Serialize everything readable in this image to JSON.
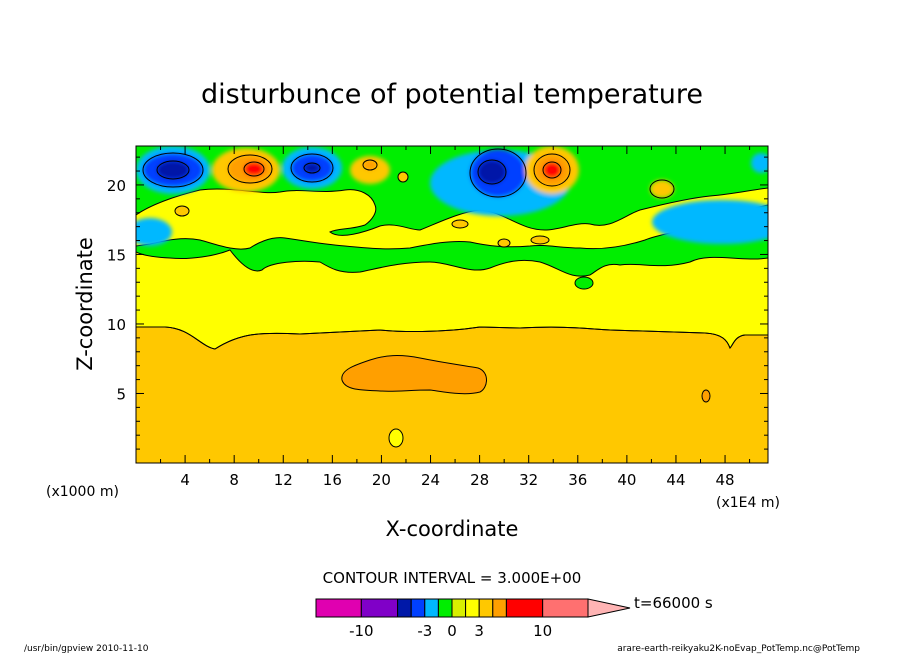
{
  "chart_data": {
    "type": "heatmap",
    "title": "disturbunce of potential temperature",
    "xlabel": "X-coordinate",
    "ylabel": "Z-coordinate",
    "x_scale_label": "(x1E4 m)",
    "y_scale_label": "(x1000 m)",
    "xlim": [
      0,
      51.5
    ],
    "ylim": [
      0,
      22.8
    ],
    "xticks": [
      "4",
      "8",
      "12",
      "16",
      "20",
      "24",
      "28",
      "32",
      "36",
      "40",
      "44",
      "48"
    ],
    "yticks": [
      "5",
      "10",
      "15",
      "20"
    ],
    "contour_interval_label": "CONTOUR INTERVAL = 3.000E+00",
    "time_label": "t=66000 s",
    "colorbar": {
      "tick_labels": [
        "-10",
        "-3",
        "0",
        "3",
        "10"
      ],
      "bins": [
        {
          "lo": -15,
          "hi": -10,
          "color": "#e000b0"
        },
        {
          "lo": -10,
          "hi": -6,
          "color": "#8000c8"
        },
        {
          "lo": -6,
          "hi": -4.5,
          "color": "#0018a8"
        },
        {
          "lo": -4.5,
          "hi": -3,
          "color": "#0040ff"
        },
        {
          "lo": -3,
          "hi": -1.5,
          "color": "#00b8ff"
        },
        {
          "lo": -1.5,
          "hi": 0,
          "color": "#00ee00"
        },
        {
          "lo": 0,
          "hi": 1.5,
          "color": "#d8f000"
        },
        {
          "lo": 1.5,
          "hi": 3,
          "color": "#ffff00"
        },
        {
          "lo": 3,
          "hi": 4.5,
          "color": "#ffc800"
        },
        {
          "lo": 4.5,
          "hi": 6,
          "color": "#ff9f00"
        },
        {
          "lo": 6,
          "hi": 10,
          "color": "#ff0000"
        },
        {
          "lo": 10,
          "hi": 15,
          "color": "#ff7070"
        },
        {
          "lo": 15,
          "hi": 20,
          "color": "#ffb4b4"
        }
      ]
    },
    "field_regions": [
      {
        "region": "lower layer, z 0-9.5",
        "approx_value": 3.5
      },
      {
        "region": "middle layer, z 9.5-15",
        "approx_value": 2
      },
      {
        "region": "warm blob centred x 24, z 6",
        "approx_value": 5
      },
      {
        "region": "cold cell centred x 3, z 21",
        "approx_value": -5.5
      },
      {
        "region": "warm cell centred x 10, z 21",
        "approx_value": 6
      },
      {
        "region": "cold cell centred x 14, z 21",
        "approx_value": -4
      },
      {
        "region": "cold cell centred x 29, z 21",
        "approx_value": -5.5
      },
      {
        "region": "warm cell centred x 34, z 21",
        "approx_value": 6
      }
    ]
  },
  "footer": {
    "left": "/usr/bin/gpview   2010-11-10",
    "right": "arare-earth-reikyaku2K-noEvap_PotTemp.nc@PotTemp"
  }
}
